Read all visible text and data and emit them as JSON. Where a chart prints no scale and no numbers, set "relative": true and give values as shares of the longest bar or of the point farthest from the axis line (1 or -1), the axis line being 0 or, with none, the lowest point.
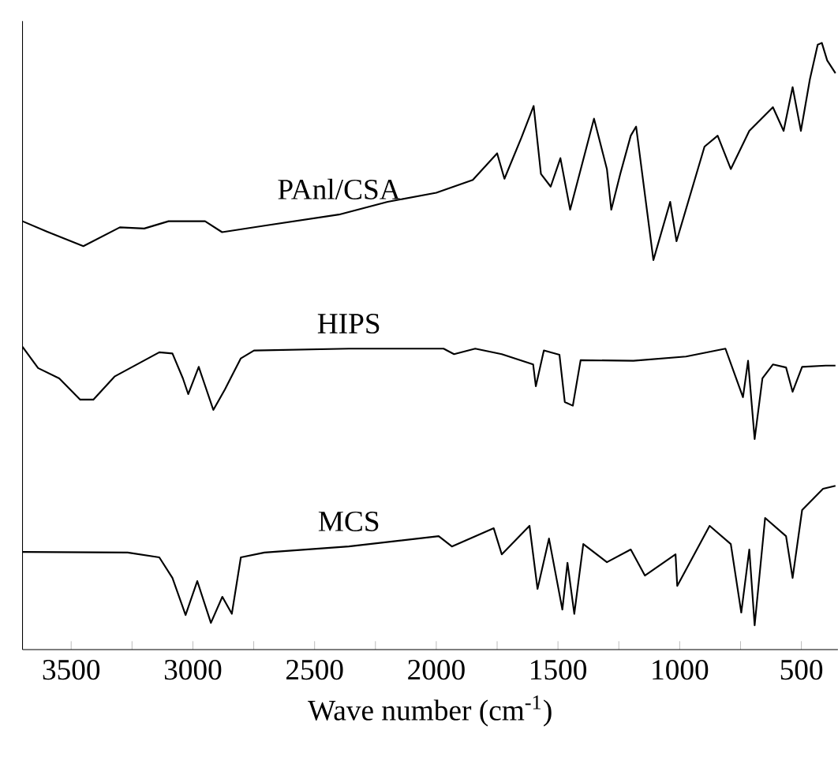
{
  "chart_data": {
    "type": "line",
    "xlabel": "Wave number (cm$^{-1}$)",
    "xlim": [
      3700,
      350
    ],
    "xticks": [
      3500,
      3000,
      2500,
      2000,
      1500,
      1000,
      500
    ],
    "relative": true,
    "tick_labels": "x",
    "series": [
      {
        "name": "PAnl/CSA",
        "color": "#000000",
        "x": [
          3700,
          3600,
          3450,
          3300,
          3200,
          3100,
          2950,
          2880,
          2700,
          2400,
          2200,
          2000,
          1850,
          1750,
          1720,
          1650,
          1600,
          1570,
          1530,
          1490,
          1450,
          1352,
          1299,
          1281,
          1244,
          1201,
          1179,
          1108,
          1039,
          1013,
          898,
          844,
          790,
          714,
          617,
          573,
          536,
          502,
          465,
          433,
          416,
          394,
          360
        ],
        "values": [
          0.706,
          0.689,
          0.665,
          0.696,
          0.694,
          0.706,
          0.706,
          0.688,
          0.699,
          0.717,
          0.738,
          0.753,
          0.774,
          0.818,
          0.776,
          0.844,
          0.896,
          0.784,
          0.763,
          0.81,
          0.725,
          0.875,
          0.792,
          0.725,
          0.784,
          0.847,
          0.862,
          0.642,
          0.738,
          0.673,
          0.829,
          0.847,
          0.792,
          0.855,
          0.894,
          0.855,
          0.927,
          0.855,
          0.94,
          0.997,
          1.0,
          0.971,
          0.95
        ]
      },
      {
        "name": "HIPS",
        "color": "#000000",
        "x": [
          3700,
          3636,
          3549,
          3463,
          3409,
          3322,
          3138,
          3084,
          3041,
          3019,
          2976,
          2916,
          2868,
          2835,
          2803,
          2749,
          2359,
          1970,
          1927,
          1840,
          1731,
          1602,
          1591,
          1558,
          1494,
          1472,
          1439,
          1407,
          1190,
          974,
          812,
          768,
          740,
          719,
          692,
          660,
          617,
          563,
          536,
          497,
          400,
          360
        ],
        "values": [
          0.499,
          0.464,
          0.447,
          0.412,
          0.412,
          0.45,
          0.49,
          0.488,
          0.447,
          0.421,
          0.466,
          0.395,
          0.429,
          0.455,
          0.48,
          0.493,
          0.496,
          0.496,
          0.487,
          0.496,
          0.487,
          0.47,
          0.434,
          0.493,
          0.486,
          0.408,
          0.402,
          0.477,
          0.476,
          0.483,
          0.496,
          0.447,
          0.416,
          0.476,
          0.347,
          0.447,
          0.47,
          0.465,
          0.425,
          0.466,
          0.468,
          0.468
        ]
      },
      {
        "name": "MCS",
        "color": "#000000",
        "x": [
          3700,
          3268,
          3138,
          3084,
          3030,
          2982,
          2926,
          2879,
          2840,
          2803,
          2706,
          2359,
          1990,
          1936,
          1764,
          1731,
          1617,
          1584,
          1537,
          1482,
          1461,
          1433,
          1396,
          1299,
          1201,
          1143,
          1017,
          1010,
          877,
          790,
          747,
          714,
          692,
          649,
          563,
          536,
          497,
          411,
          360
        ],
        "values": [
          0.161,
          0.16,
          0.152,
          0.118,
          0.057,
          0.113,
          0.044,
          0.087,
          0.059,
          0.152,
          0.16,
          0.17,
          0.187,
          0.17,
          0.2,
          0.157,
          0.204,
          0.1,
          0.183,
          0.066,
          0.143,
          0.059,
          0.174,
          0.144,
          0.165,
          0.122,
          0.157,
          0.105,
          0.204,
          0.174,
          0.061,
          0.165,
          0.04,
          0.217,
          0.187,
          0.118,
          0.23,
          0.265,
          0.27
        ]
      }
    ]
  }
}
